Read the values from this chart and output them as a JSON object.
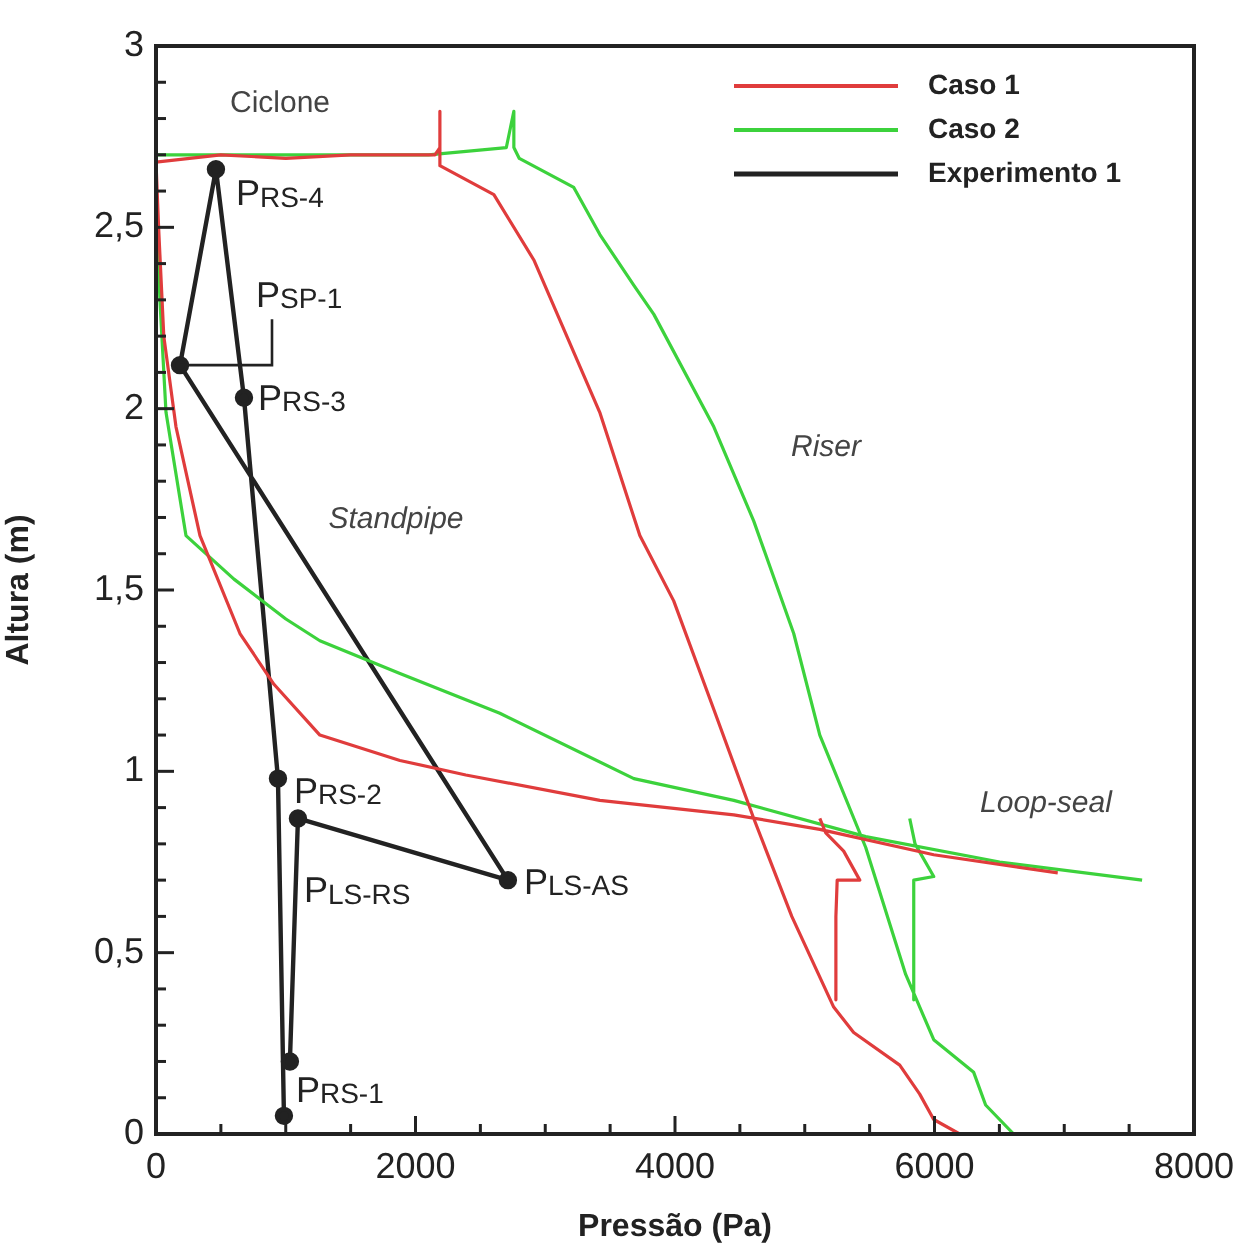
{
  "chart_data": {
    "type": "line",
    "xlabel": "Pressão (Pa)",
    "ylabel": "Altura (m)",
    "xlim": [
      0,
      8000
    ],
    "ylim": [
      0,
      3
    ],
    "xticks": [
      0,
      {
        "value": 500,
        "label": null
      },
      {
        "value": 1000,
        "label": null
      },
      {
        "value": 1500,
        "label": null
      },
      2000,
      {
        "value": 2500,
        "label": null
      },
      {
        "value": 3000,
        "label": null
      },
      {
        "value": 3500,
        "label": null
      },
      4000,
      {
        "value": 4500,
        "label": null
      },
      {
        "value": 5000,
        "label": null
      },
      {
        "value": 5500,
        "label": null
      },
      6000,
      {
        "value": 6500,
        "label": null
      },
      {
        "value": 7000,
        "label": null
      },
      {
        "value": 7500,
        "label": null
      },
      8000
    ],
    "yticks": [
      0,
      {
        "value": 0.1,
        "label": null
      },
      {
        "value": 0.2,
        "label": null
      },
      {
        "value": 0.3,
        "label": null
      },
      {
        "value": 0.4,
        "label": null
      },
      {
        "value": 0.5,
        "label": "0,5"
      },
      {
        "value": 0.6,
        "label": null
      },
      {
        "value": 0.7,
        "label": null
      },
      {
        "value": 0.8,
        "label": null
      },
      {
        "value": 0.9,
        "label": null
      },
      1,
      {
        "value": 1.1,
        "label": null
      },
      {
        "value": 1.2,
        "label": null
      },
      {
        "value": 1.3,
        "label": null
      },
      {
        "value": 1.4,
        "label": null
      },
      {
        "value": 1.5,
        "label": "1,5"
      },
      {
        "value": 1.6,
        "label": null
      },
      {
        "value": 1.7,
        "label": null
      },
      {
        "value": 1.8,
        "label": null
      },
      {
        "value": 1.9,
        "label": null
      },
      2,
      {
        "value": 2.1,
        "label": null
      },
      {
        "value": 2.2,
        "label": null
      },
      {
        "value": 2.3,
        "label": null
      },
      {
        "value": 2.4,
        "label": null
      },
      {
        "value": 2.5,
        "label": "2,5"
      },
      {
        "value": 2.6,
        "label": null
      },
      {
        "value": 2.7,
        "label": null
      },
      {
        "value": 2.8,
        "label": null
      },
      {
        "value": 2.9,
        "label": null
      },
      3
    ],
    "grid": false,
    "legend": "top right",
    "series": [
      {
        "name": "Caso 1",
        "color": "#e03c3c",
        "marker": "none",
        "x": [
          6950,
          5994,
          5116,
          4453,
          3421,
          2388,
          1880,
          1263,
          909,
          647,
          339,
          154,
          60,
          20,
          0,
          500,
          1000,
          1500,
          2000,
          2150,
          2188,
          2188,
          2188,
          2604,
          2912,
          3420,
          3729,
          3990,
          4300,
          4607,
          4900,
          5223,
          5377,
          5732,
          5886,
          5994,
          6194,
          null,
          5116,
          5162,
          5300,
          5424,
          5250,
          5240,
          5240
        ],
        "values": [
          0.72,
          0.77,
          0.84,
          0.88,
          0.92,
          0.99,
          1.03,
          1.1,
          1.24,
          1.38,
          1.65,
          1.95,
          2.2,
          2.5,
          2.68,
          2.7,
          2.69,
          2.7,
          2.7,
          2.7,
          2.72,
          2.82,
          2.67,
          2.59,
          2.41,
          1.99,
          1.65,
          1.47,
          1.17,
          0.87,
          0.6,
          0.35,
          0.28,
          0.19,
          0.11,
          0.04,
          0,
          null,
          0.87,
          0.83,
          0.78,
          0.7,
          0.7,
          0.6,
          0.37
        ]
      },
      {
        "name": "Caso 2",
        "color": "#3cd23c",
        "marker": "none",
        "x": [
          7600,
          6502,
          5470,
          4453,
          3683,
          2650,
          1880,
          1263,
          1001,
          601,
          231,
          77,
          30,
          0,
          0,
          700,
          1400,
          2100,
          2700,
          2758,
          2758,
          2800,
          3220,
          3421,
          3683,
          3837,
          4299,
          4607,
          4915,
          5116,
          5470,
          5778,
          5994,
          6302,
          6394,
          6610,
          null,
          5809,
          5850,
          5994,
          5840,
          5840
        ],
        "values": [
          0.7,
          0.75,
          0.82,
          0.92,
          0.98,
          1.16,
          1.27,
          1.36,
          1.42,
          1.53,
          1.65,
          1.99,
          2.3,
          2.6,
          2.7,
          2.7,
          2.7,
          2.7,
          2.72,
          2.82,
          2.72,
          2.69,
          2.61,
          2.48,
          2.34,
          2.26,
          1.95,
          1.69,
          1.38,
          1.1,
          0.79,
          0.44,
          0.26,
          0.17,
          0.08,
          0,
          null,
          0.87,
          0.8,
          0.71,
          0.7,
          0.37
        ]
      },
      {
        "name": "Experimento 1",
        "color": "#222222",
        "marker": "circle",
        "x": [
          986,
          940,
          678,
          462,
          185,
          2712,
          1094,
          1032
        ],
        "values": [
          0.05,
          0.98,
          2.03,
          2.66,
          2.12,
          0.7,
          0.87,
          0.2
        ]
      }
    ],
    "annotations": [
      {
        "text": "P$_{RS-1}$",
        "x": 986,
        "y": 0.05
      },
      {
        "text": "P$_{RS-2}$",
        "x": 940,
        "y": 0.98
      },
      {
        "text": "P$_{RS-3}$",
        "x": 678,
        "y": 2.03
      },
      {
        "text": "P$_{RS-4}$",
        "x": 462,
        "y": 2.66
      },
      {
        "text": "P$_{SP-1}$",
        "x": 185,
        "y": 2.12
      },
      {
        "text": "P$_{LS-AS}$",
        "x": 2712,
        "y": 0.7
      },
      {
        "text": "P$_{LS-RS}$",
        "x": 1094,
        "y": 0.87
      },
      "Ciclone",
      "Standpipe",
      "Riser",
      "Loop-seal"
    ]
  }
}
